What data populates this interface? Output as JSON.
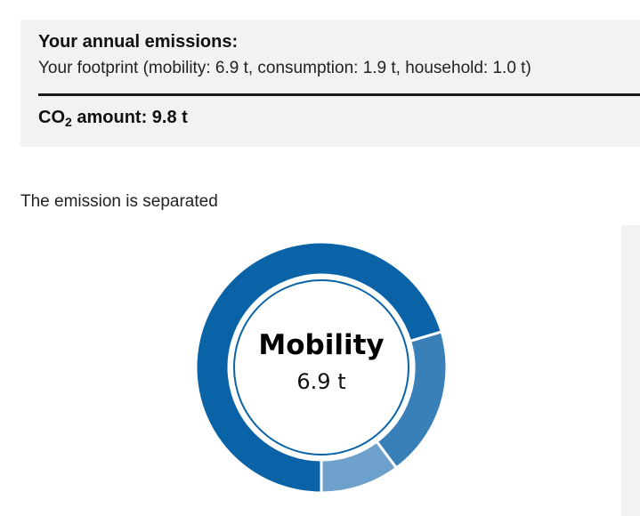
{
  "summary": {
    "title": "Your annual emissions:",
    "detail": "Your footprint (mobility: 6.9 t, consumption: 1.9 t, household: 1.0 t)",
    "co2_prefix": "CO",
    "co2_sub": "2",
    "co2_suffix": " amount: 9.8 t"
  },
  "section": {
    "separated_label": "The emission is separated"
  },
  "chart_data": {
    "type": "pie",
    "style": "donut",
    "unit": "t",
    "categories": [
      "Mobility",
      "Consumption",
      "Household"
    ],
    "values": [
      6.9,
      1.9,
      1.0
    ],
    "colors": [
      "#0a63a6",
      "#3a80b8",
      "#6ea0cc"
    ],
    "selected": {
      "label": "Mobility",
      "value": "6.9 t"
    }
  }
}
